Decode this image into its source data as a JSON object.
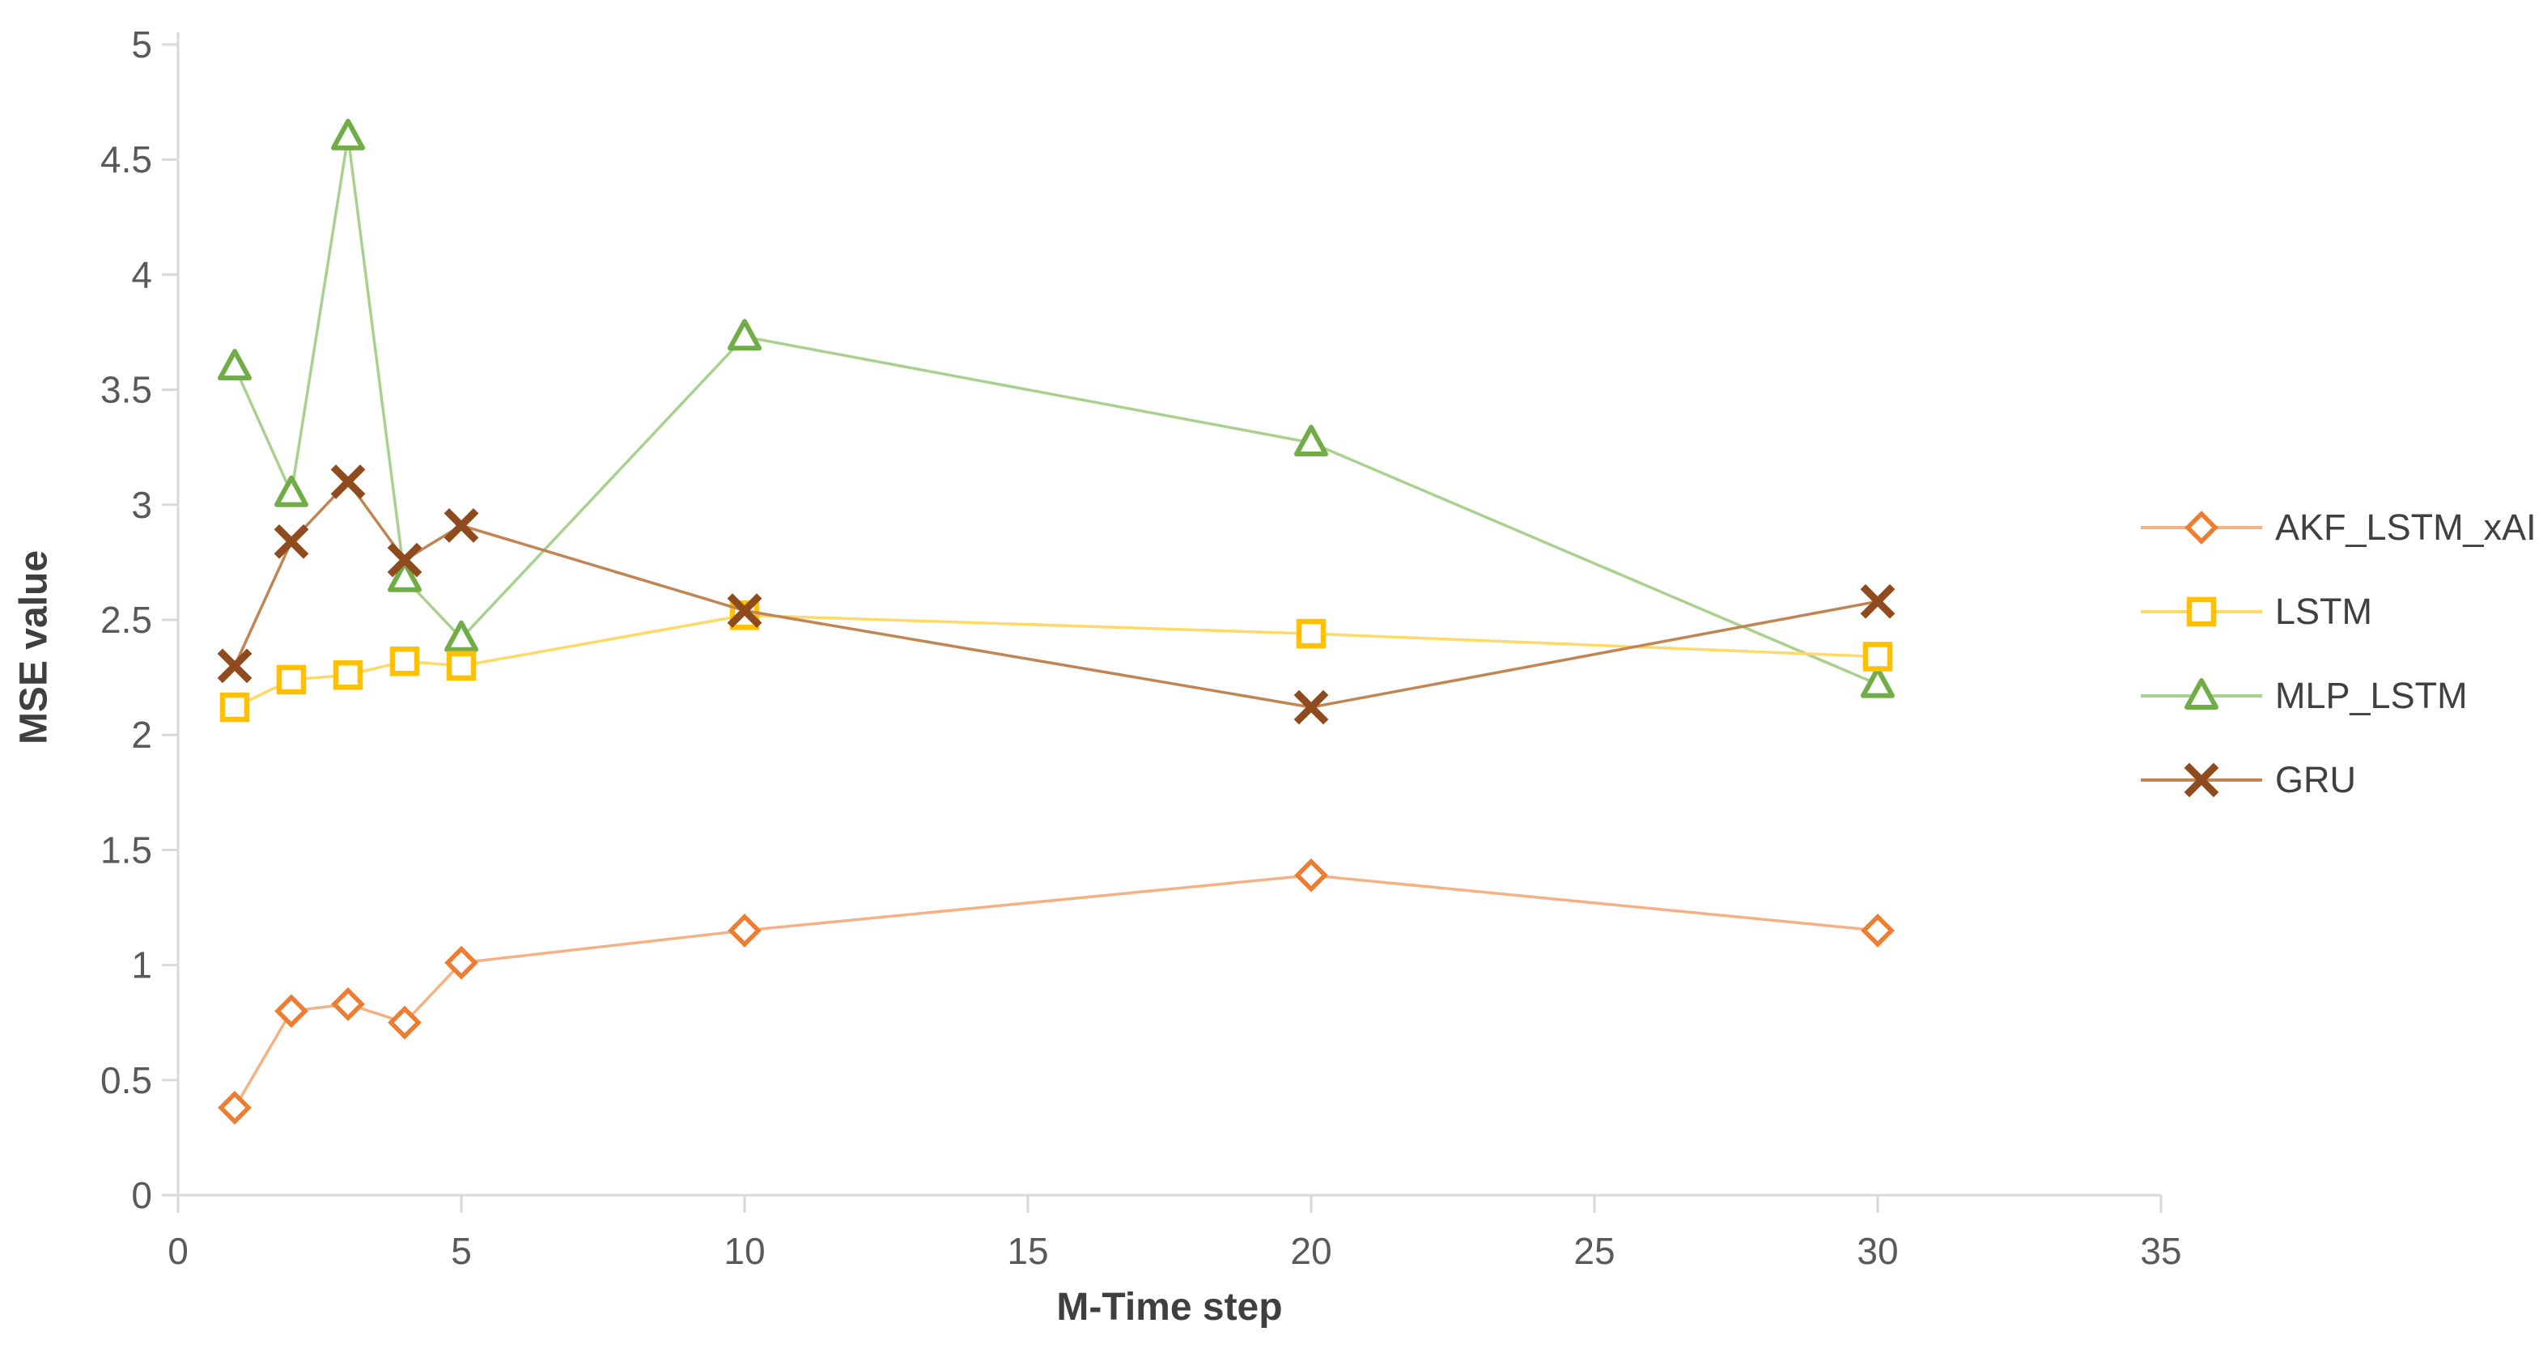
{
  "chart_data": {
    "type": "line",
    "title": "",
    "xlabel": "M-Time step",
    "ylabel": "MSE value",
    "x": [
      1,
      2,
      3,
      4,
      5,
      10,
      20,
      30
    ],
    "series": [
      {
        "name": "AKF_LSTM_xAI",
        "marker": "diamond",
        "marker_color": "#ED7D31",
        "line_color": "#F4B183",
        "values": [
          0.38,
          0.8,
          0.83,
          0.75,
          1.01,
          1.15,
          1.39,
          1.15
        ]
      },
      {
        "name": "LSTM",
        "marker": "square",
        "marker_color": "#FFC000",
        "line_color": "#FFD965",
        "values": [
          2.12,
          2.24,
          2.26,
          2.32,
          2.3,
          2.52,
          2.44,
          2.34
        ]
      },
      {
        "name": "MLP_LSTM",
        "marker": "triangle",
        "marker_color": "#70AD47",
        "line_color": "#A9D18E",
        "values": [
          3.6,
          3.05,
          4.6,
          2.68,
          2.42,
          3.73,
          3.27,
          2.22
        ]
      },
      {
        "name": "GRU",
        "marker": "x",
        "marker_color": "#8F4A1D",
        "line_color": "#C08552",
        "values": [
          2.3,
          2.84,
          3.1,
          2.76,
          2.91,
          2.54,
          2.12,
          2.58
        ]
      }
    ],
    "xlim": [
      0,
      35
    ],
    "ylim": [
      0,
      5
    ],
    "x_ticks": [
      0,
      5,
      10,
      15,
      20,
      25,
      30,
      35
    ],
    "y_ticks": [
      0,
      0.5,
      1,
      1.5,
      2,
      2.5,
      3,
      3.5,
      4,
      4.5,
      5
    ],
    "grid": false,
    "legend_position": "right",
    "axis_color": "#D9D9D9",
    "tick_label_color": "#595959"
  }
}
